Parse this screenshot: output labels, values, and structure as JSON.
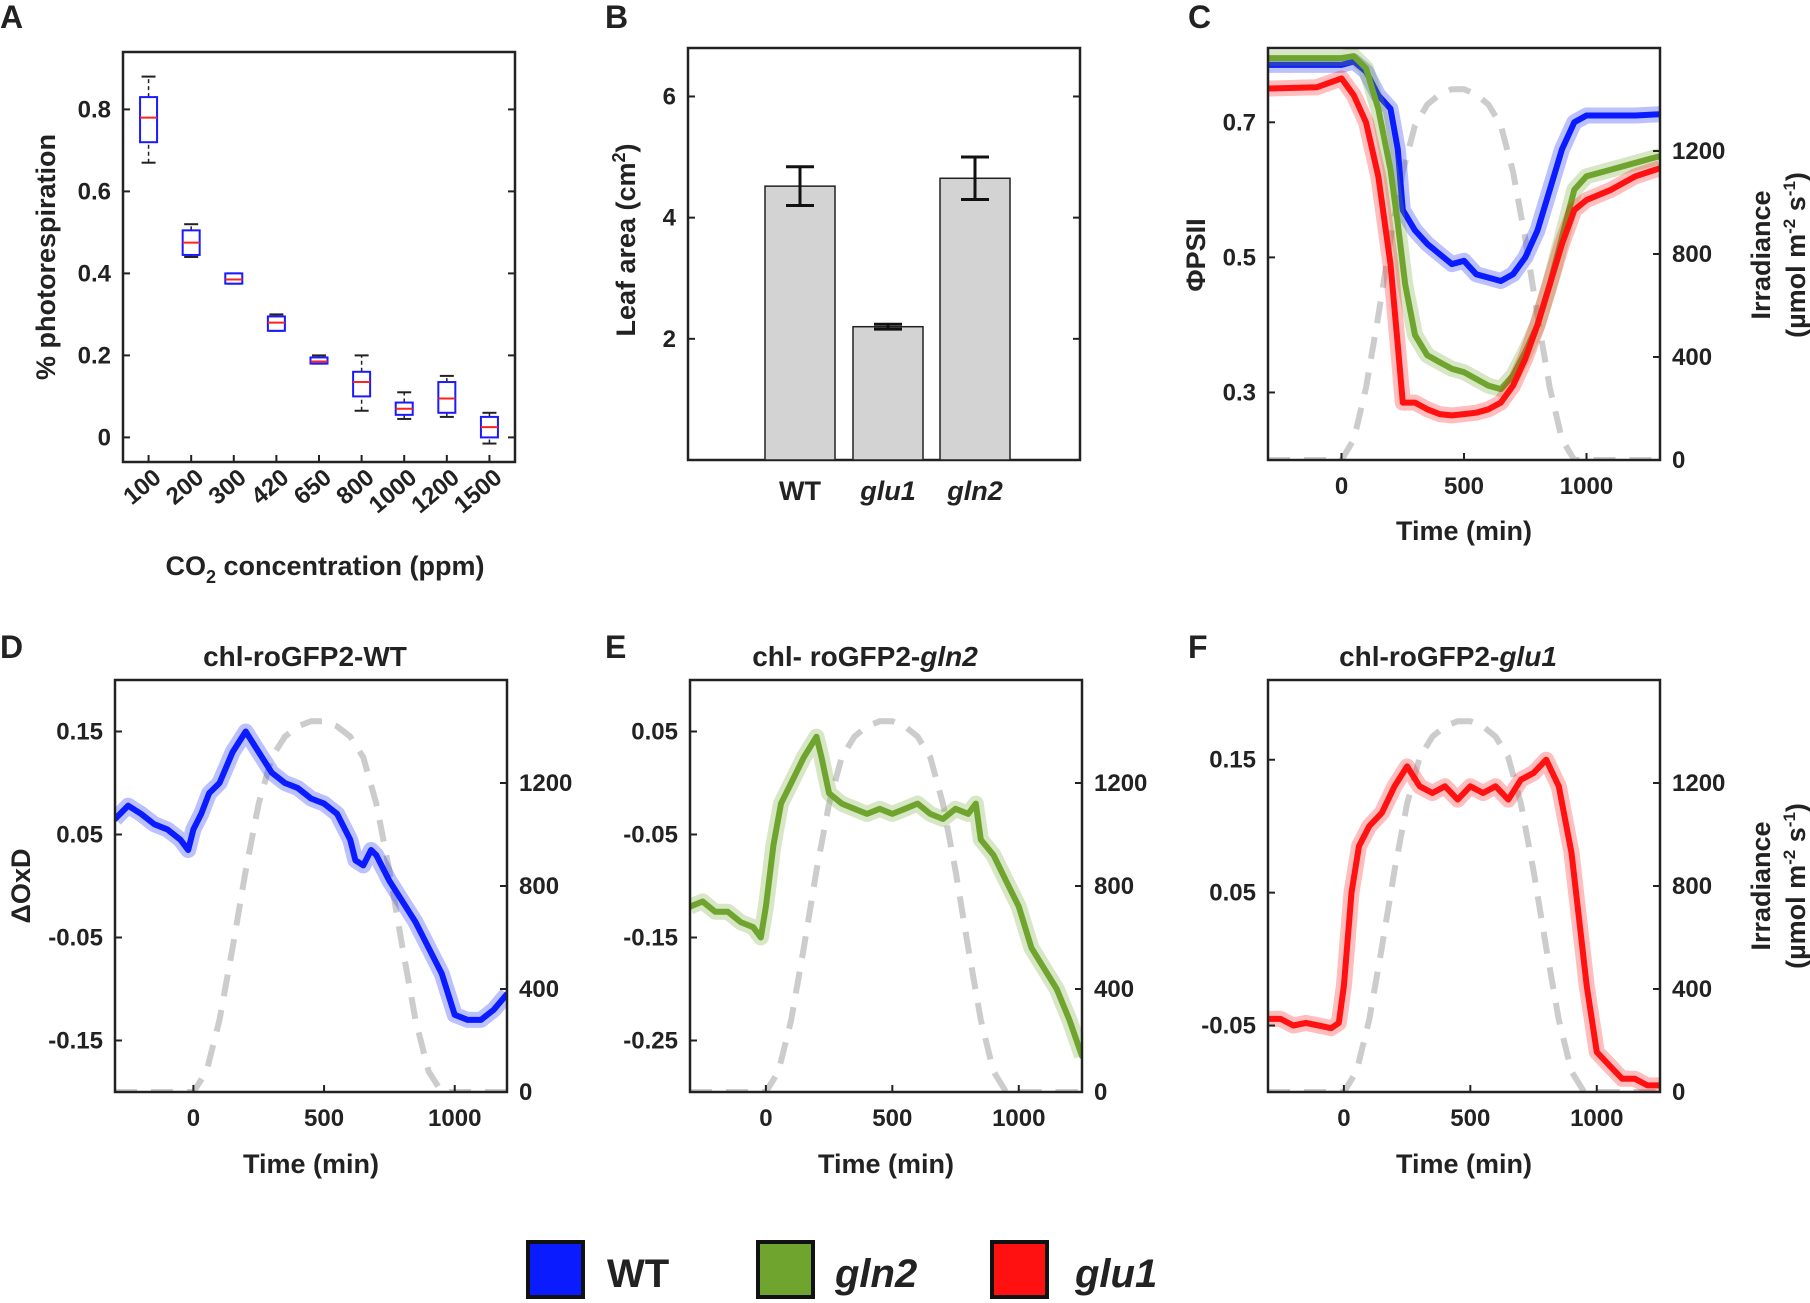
{
  "figure": {
    "legend": [
      {
        "label": "WT",
        "italic": false,
        "color": "#0a1bff"
      },
      {
        "label": "gln2",
        "italic": true,
        "color": "#6fa52e"
      },
      {
        "label": "glu1",
        "italic": true,
        "color": "#ff1111"
      }
    ],
    "irradiance_color": "#cccccc"
  },
  "chart_data": [
    {
      "panel": "A",
      "type": "box",
      "xlabel": "CO2 concentration (ppm)",
      "ylabel": "% photorespiration",
      "ylim": [
        -0.06,
        0.94
      ],
      "yticks": [
        "0",
        "0.2",
        "0.4",
        "0.6",
        "0.8"
      ],
      "categories": [
        "100",
        "200",
        "300",
        "420",
        "650",
        "800",
        "1000",
        "1200",
        "1500"
      ],
      "boxes": [
        {
          "whisker_low": 0.67,
          "q1": 0.72,
          "median": 0.78,
          "q3": 0.83,
          "whisker_high": 0.88
        },
        {
          "whisker_low": 0.44,
          "q1": 0.445,
          "median": 0.475,
          "q3": 0.505,
          "whisker_high": 0.52
        },
        {
          "whisker_low": 0.375,
          "q1": 0.375,
          "median": 0.385,
          "q3": 0.4,
          "whisker_high": 0.4
        },
        {
          "whisker_low": 0.26,
          "q1": 0.26,
          "median": 0.28,
          "q3": 0.295,
          "whisker_high": 0.3
        },
        {
          "whisker_low": 0.18,
          "q1": 0.18,
          "median": 0.185,
          "q3": 0.195,
          "whisker_high": 0.2
        },
        {
          "whisker_low": 0.065,
          "q1": 0.1,
          "median": 0.135,
          "q3": 0.16,
          "whisker_high": 0.2
        },
        {
          "whisker_low": 0.045,
          "q1": 0.055,
          "median": 0.07,
          "q3": 0.085,
          "whisker_high": 0.11
        },
        {
          "whisker_low": 0.05,
          "q1": 0.06,
          "median": 0.095,
          "q3": 0.135,
          "whisker_high": 0.15
        },
        {
          "whisker_low": -0.015,
          "q1": 0.0,
          "median": 0.025,
          "q3": 0.05,
          "whisker_high": 0.06
        }
      ],
      "box_color": "#1a1aff",
      "median_color": "#ff2020"
    },
    {
      "panel": "B",
      "type": "bar",
      "ylabel": "Leaf area (cm2)",
      "ylim": [
        0,
        6.8
      ],
      "yticks": [
        "2",
        "4",
        "6"
      ],
      "categories": [
        "WT",
        "glu1",
        "gln2"
      ],
      "categories_italic": [
        false,
        true,
        true
      ],
      "values": [
        4.52,
        2.2,
        4.65
      ],
      "errors": [
        0.32,
        0.04,
        0.35
      ],
      "bar_color": "#d3d3d3"
    },
    {
      "panel": "C",
      "type": "line",
      "xlabel": "Time (min)",
      "ylabel": "ΦPSII",
      "y2label": "Irradiance (µmol m-2 s-1)",
      "xlim": [
        -300,
        1300
      ],
      "xticks": [
        "0",
        "500",
        "1000"
      ],
      "ylim": [
        0.2,
        0.81
      ],
      "yticks": [
        "0.3",
        "0.5",
        "0.7"
      ],
      "y2lim": [
        0,
        1600
      ],
      "y2ticks": [
        "0",
        "400",
        "800",
        "1200"
      ],
      "series": [
        {
          "name": "WT",
          "color": "#0a1bff",
          "x": [
            -300,
            0,
            50,
            100,
            150,
            200,
            230,
            250,
            300,
            350,
            400,
            450,
            500,
            550,
            600,
            650,
            700,
            750,
            800,
            850,
            900,
            950,
            1000,
            1050,
            1100,
            1200,
            1300
          ],
          "y": [
            0.785,
            0.785,
            0.79,
            0.775,
            0.74,
            0.72,
            0.66,
            0.57,
            0.54,
            0.52,
            0.505,
            0.49,
            0.495,
            0.475,
            0.47,
            0.465,
            0.475,
            0.5,
            0.54,
            0.6,
            0.66,
            0.7,
            0.71,
            0.71,
            0.71,
            0.71,
            0.712
          ]
        },
        {
          "name": "gln2",
          "color": "#6fa52e",
          "x": [
            -300,
            0,
            50,
            100,
            150,
            200,
            230,
            260,
            300,
            350,
            400,
            450,
            500,
            550,
            600,
            650,
            700,
            750,
            800,
            850,
            900,
            950,
            1000,
            1100,
            1200,
            1300
          ],
          "y": [
            0.795,
            0.795,
            0.798,
            0.78,
            0.72,
            0.63,
            0.55,
            0.46,
            0.385,
            0.355,
            0.345,
            0.335,
            0.33,
            0.32,
            0.31,
            0.305,
            0.325,
            0.36,
            0.4,
            0.46,
            0.53,
            0.6,
            0.62,
            0.63,
            0.64,
            0.65
          ]
        },
        {
          "name": "glu1",
          "color": "#ff1111",
          "x": [
            -300,
            -100,
            0,
            50,
            100,
            150,
            200,
            230,
            250,
            300,
            350,
            400,
            450,
            500,
            550,
            600,
            650,
            700,
            750,
            800,
            850,
            900,
            950,
            1000,
            1100,
            1200,
            1300
          ],
          "y": [
            0.75,
            0.752,
            0.765,
            0.74,
            0.7,
            0.62,
            0.49,
            0.37,
            0.285,
            0.285,
            0.275,
            0.268,
            0.266,
            0.268,
            0.27,
            0.275,
            0.285,
            0.31,
            0.35,
            0.4,
            0.46,
            0.52,
            0.57,
            0.585,
            0.6,
            0.62,
            0.632
          ]
        },
        {
          "name": "Irradiance",
          "axis": "y2",
          "dashed": true,
          "color": "#cccccc",
          "x": [
            -300,
            -10,
            0,
            50,
            100,
            150,
            200,
            250,
            300,
            350,
            400,
            450,
            500,
            550,
            600,
            650,
            700,
            750,
            800,
            850,
            900,
            950,
            1000,
            1100,
            1300
          ],
          "y": [
            0,
            0,
            0,
            80,
            280,
            560,
            860,
            1120,
            1300,
            1380,
            1420,
            1440,
            1440,
            1420,
            1380,
            1300,
            1120,
            860,
            560,
            280,
            80,
            0,
            0,
            0,
            0
          ]
        }
      ]
    },
    {
      "panel": "D",
      "type": "line",
      "title": "chl-roGFP2-WT",
      "title_italic_part": "",
      "xlabel": "Time (min)",
      "ylabel": "ΔOxD",
      "xlim": [
        -300,
        1200
      ],
      "xticks": [
        "0",
        "500",
        "1000"
      ],
      "ylim": [
        -0.2,
        0.2
      ],
      "yticks": [
        "-0.15",
        "-0.05",
        "0.05",
        "0.15"
      ],
      "y2lim": [
        0,
        1600
      ],
      "y2ticks": [
        "0",
        "400",
        "800",
        "1200"
      ],
      "series": [
        {
          "name": "WT",
          "color": "#0a1bff",
          "x": [
            -300,
            -250,
            -200,
            -150,
            -100,
            -50,
            -20,
            0,
            30,
            60,
            100,
            150,
            200,
            250,
            300,
            350,
            400,
            450,
            500,
            550,
            600,
            620,
            650,
            680,
            700,
            750,
            800,
            850,
            900,
            950,
            1000,
            1050,
            1100,
            1150,
            1200
          ],
          "y": [
            0.065,
            0.078,
            0.07,
            0.06,
            0.055,
            0.045,
            0.035,
            0.055,
            0.07,
            0.09,
            0.1,
            0.13,
            0.15,
            0.13,
            0.11,
            0.1,
            0.095,
            0.085,
            0.08,
            0.07,
            0.045,
            0.025,
            0.02,
            0.035,
            0.03,
            0.005,
            -0.015,
            -0.035,
            -0.06,
            -0.085,
            -0.125,
            -0.13,
            -0.13,
            -0.12,
            -0.105
          ]
        },
        {
          "name": "Irradiance",
          "axis": "y2",
          "dashed": true,
          "color": "#cccccc",
          "x": [
            -300,
            -10,
            0,
            50,
            100,
            150,
            200,
            250,
            300,
            350,
            400,
            450,
            500,
            550,
            600,
            650,
            700,
            750,
            800,
            850,
            900,
            950,
            1000,
            1200
          ],
          "y": [
            0,
            0,
            0,
            80,
            280,
            560,
            860,
            1120,
            1300,
            1380,
            1420,
            1440,
            1440,
            1420,
            1380,
            1300,
            1120,
            860,
            560,
            280,
            80,
            0,
            0,
            0
          ]
        }
      ]
    },
    {
      "panel": "E",
      "type": "line",
      "title": "chl- roGFP2-",
      "title_italic_part": "gln2",
      "xlabel": "Time (min)",
      "xlim": [
        -300,
        1250
      ],
      "xticks": [
        "0",
        "500",
        "1000"
      ],
      "ylim": [
        -0.3,
        0.1
      ],
      "yticks": [
        "-0.25",
        "-0.15",
        "-0.05",
        "0.05"
      ],
      "y2lim": [
        0,
        1600
      ],
      "y2ticks": [
        "0",
        "400",
        "800",
        "1200"
      ],
      "series": [
        {
          "name": "gln2",
          "color": "#6fa52e",
          "x": [
            -300,
            -250,
            -200,
            -150,
            -100,
            -50,
            -20,
            0,
            30,
            60,
            100,
            150,
            200,
            220,
            250,
            300,
            350,
            400,
            450,
            500,
            550,
            600,
            650,
            700,
            750,
            800,
            830,
            850,
            900,
            950,
            1000,
            1050,
            1100,
            1150,
            1200,
            1250
          ],
          "y": [
            -0.12,
            -0.115,
            -0.125,
            -0.125,
            -0.135,
            -0.14,
            -0.15,
            -0.12,
            -0.06,
            -0.02,
            0.0,
            0.025,
            0.045,
            0.025,
            -0.01,
            -0.02,
            -0.025,
            -0.03,
            -0.025,
            -0.03,
            -0.025,
            -0.02,
            -0.03,
            -0.035,
            -0.025,
            -0.03,
            -0.02,
            -0.055,
            -0.07,
            -0.095,
            -0.12,
            -0.16,
            -0.18,
            -0.2,
            -0.23,
            -0.265
          ]
        },
        {
          "name": "Irradiance",
          "axis": "y2",
          "dashed": true,
          "color": "#cccccc",
          "x": [
            -300,
            -10,
            0,
            50,
            100,
            150,
            200,
            250,
            300,
            350,
            400,
            450,
            500,
            550,
            600,
            650,
            700,
            750,
            800,
            850,
            900,
            950,
            1000,
            1250
          ],
          "y": [
            0,
            0,
            0,
            80,
            280,
            560,
            860,
            1120,
            1300,
            1380,
            1420,
            1440,
            1440,
            1420,
            1380,
            1300,
            1120,
            860,
            560,
            280,
            80,
            0,
            0,
            0
          ]
        }
      ]
    },
    {
      "panel": "F",
      "type": "line",
      "title": "chl-roGFP2-",
      "title_italic_part": "glu1",
      "xlabel": "Time (min)",
      "y2label": "Irradiance (µmol m-2 s-1)",
      "xlim": [
        -300,
        1250
      ],
      "xticks": [
        "0",
        "500",
        "1000"
      ],
      "ylim": [
        -0.1,
        0.21
      ],
      "yticks": [
        "-0.05",
        "0.05",
        "0.15"
      ],
      "y2lim": [
        0,
        1600
      ],
      "y2ticks": [
        "0",
        "400",
        "800",
        "1200"
      ],
      "series": [
        {
          "name": "glu1",
          "color": "#ff1111",
          "x": [
            -300,
            -250,
            -200,
            -150,
            -100,
            -50,
            -20,
            0,
            30,
            60,
            100,
            150,
            200,
            250,
            300,
            350,
            400,
            450,
            500,
            550,
            600,
            650,
            700,
            750,
            800,
            850,
            900,
            930,
            960,
            1000,
            1050,
            1100,
            1150,
            1200,
            1250
          ],
          "y": [
            -0.045,
            -0.045,
            -0.05,
            -0.048,
            -0.05,
            -0.052,
            -0.048,
            -0.02,
            0.05,
            0.085,
            0.1,
            0.11,
            0.13,
            0.145,
            0.13,
            0.125,
            0.13,
            0.12,
            0.13,
            0.125,
            0.13,
            0.12,
            0.135,
            0.14,
            0.15,
            0.13,
            0.08,
            0.03,
            -0.02,
            -0.07,
            -0.08,
            -0.09,
            -0.09,
            -0.095,
            -0.095
          ]
        },
        {
          "name": "Irradiance",
          "axis": "y2",
          "dashed": true,
          "color": "#cccccc",
          "x": [
            -300,
            -10,
            0,
            50,
            100,
            150,
            200,
            250,
            300,
            350,
            400,
            450,
            500,
            550,
            600,
            650,
            700,
            750,
            800,
            850,
            900,
            950,
            1000,
            1250
          ],
          "y": [
            0,
            0,
            0,
            80,
            280,
            560,
            860,
            1120,
            1300,
            1380,
            1420,
            1440,
            1440,
            1420,
            1380,
            1300,
            1120,
            860,
            560,
            280,
            80,
            0,
            0,
            0
          ]
        }
      ]
    }
  ]
}
